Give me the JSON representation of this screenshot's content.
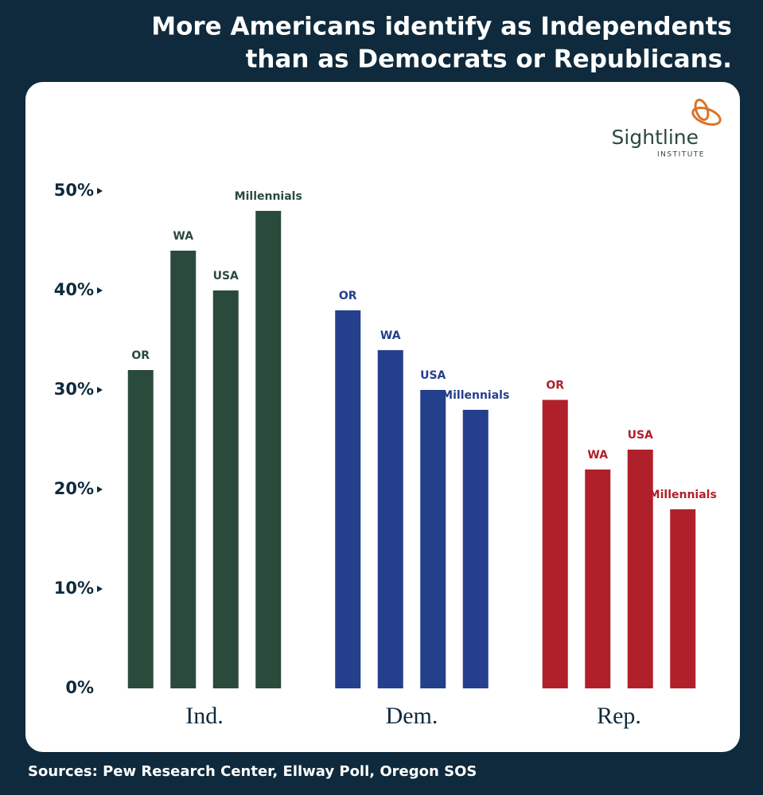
{
  "chart_data": {
    "type": "bar",
    "title_lines": [
      "More Americans identify as Independents",
      "than as Democrats or Republicans."
    ],
    "categories": [
      "Ind.",
      "Dem.",
      "Rep."
    ],
    "category_colors": [
      "#2a4a3c",
      "#243f8c",
      "#b0202a"
    ],
    "series": [
      {
        "name": "OR",
        "values": [
          32,
          38,
          29
        ]
      },
      {
        "name": "WA",
        "values": [
          44,
          34,
          22
        ]
      },
      {
        "name": "USA",
        "values": [
          40,
          30,
          24
        ]
      },
      {
        "name": "Millennials",
        "values": [
          48,
          28,
          18
        ]
      }
    ],
    "ylim": [
      0,
      50
    ],
    "yticks": [
      {
        "value": 0,
        "label": "0%"
      },
      {
        "value": 10,
        "label": "10%"
      },
      {
        "value": 20,
        "label": "20%"
      },
      {
        "value": 30,
        "label": "30%"
      },
      {
        "value": 40,
        "label": "40%"
      },
      {
        "value": 50,
        "label": "50%"
      }
    ],
    "logo": {
      "name": "Sightline",
      "subtitle": "INSTITUTE"
    },
    "source": "Sources: Pew Research Center, Ellway Poll, Oregon SOS"
  }
}
